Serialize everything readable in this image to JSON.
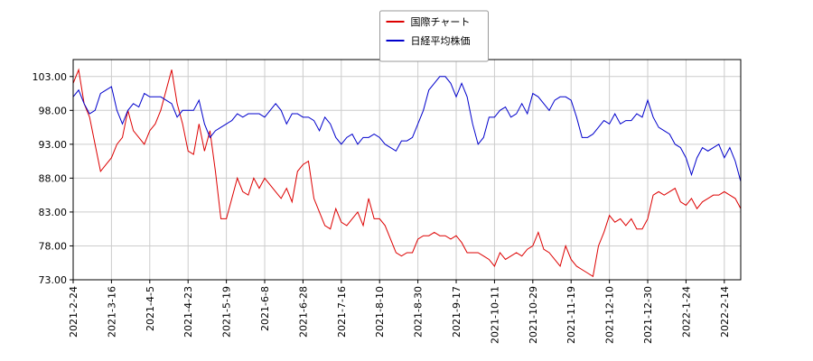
{
  "chart_data": {
    "type": "line",
    "categories": [
      "2021-2-24",
      null,
      null,
      null,
      null,
      null,
      null,
      "2021-3-16",
      null,
      null,
      null,
      null,
      null,
      null,
      "2021-4-5",
      null,
      null,
      null,
      null,
      null,
      null,
      "2021-4-23",
      null,
      null,
      null,
      null,
      null,
      null,
      "2021-5-19",
      null,
      null,
      null,
      null,
      null,
      null,
      "2021-6-8",
      null,
      null,
      null,
      null,
      null,
      null,
      "2021-6-28",
      null,
      null,
      null,
      null,
      null,
      null,
      "2021-7-16",
      null,
      null,
      null,
      null,
      null,
      null,
      "2021-8-10",
      null,
      null,
      null,
      null,
      null,
      null,
      "2021-8-30",
      null,
      null,
      null,
      null,
      null,
      null,
      "2021-9-17",
      null,
      null,
      null,
      null,
      null,
      null,
      "2021-10-11",
      null,
      null,
      null,
      null,
      null,
      null,
      "2021-10-29",
      null,
      null,
      null,
      null,
      null,
      null,
      "2021-11-19",
      null,
      null,
      null,
      null,
      null,
      null,
      "2021-12-10",
      null,
      null,
      null,
      null,
      null,
      null,
      "2021-12-30",
      null,
      null,
      null,
      null,
      null,
      null,
      "2022-1-24",
      null,
      null,
      null,
      null,
      null,
      null,
      "2022-2-14",
      null,
      null,
      null
    ],
    "series": [
      {
        "name": "国際チャート",
        "color": "#dd0000",
        "values": [
          102,
          104,
          99,
          97,
          93,
          89,
          90,
          91,
          93,
          94,
          98,
          95,
          94,
          93,
          95,
          96,
          98,
          101,
          104,
          99,
          96,
          92,
          91.5,
          96,
          92,
          95,
          89,
          82,
          82,
          85,
          88,
          86,
          85.5,
          88,
          86.5,
          88,
          87,
          86,
          85,
          86.5,
          84.5,
          89,
          90,
          90.5,
          85,
          83,
          81,
          80.5,
          83.5,
          81.5,
          81,
          82,
          83,
          81,
          85,
          82,
          82,
          81,
          79,
          77,
          76.5,
          77,
          77,
          79,
          79.5,
          79.5,
          80,
          79.5,
          79.5,
          79,
          79.5,
          78.5,
          77,
          77,
          77,
          76.5,
          76,
          75,
          77,
          76,
          76.5,
          77,
          76.5,
          77.5,
          78,
          80,
          77.5,
          77,
          76,
          75,
          78,
          76,
          75,
          74.5,
          74,
          73.5,
          78,
          80,
          82.5,
          81.5,
          82,
          81,
          82,
          80.5,
          80.5,
          82,
          85.5,
          86,
          85.5,
          86,
          86.5,
          84.5,
          84,
          85,
          83.5,
          84.5,
          85,
          85.5,
          85.5,
          86,
          85.5,
          85,
          83.5
        ]
      },
      {
        "name": "日経平均株価",
        "color": "#0000cc",
        "values": [
          100,
          101,
          99,
          97.5,
          98,
          100.5,
          101,
          101.5,
          98,
          96,
          98,
          99,
          98.5,
          100.5,
          100,
          100,
          100,
          99.5,
          99,
          97,
          98,
          98,
          98,
          99.5,
          96,
          94,
          95,
          95.5,
          96,
          96.5,
          97.5,
          97,
          97.5,
          97.5,
          97.5,
          97,
          98,
          99,
          98,
          96,
          97.5,
          97.5,
          97,
          97,
          96.5,
          95,
          97,
          96,
          94,
          93,
          94,
          94.5,
          93,
          94,
          94,
          94.5,
          94,
          93,
          92.5,
          92,
          93.5,
          93.5,
          94,
          96,
          98,
          101,
          102,
          103,
          103,
          102,
          100,
          102,
          100,
          96,
          93,
          94,
          97,
          97,
          98,
          98.5,
          97,
          97.5,
          99,
          97.5,
          100.5,
          100,
          99,
          98,
          99.5,
          100,
          100,
          99.5,
          97,
          94,
          94,
          94.5,
          95.5,
          96.5,
          96,
          97.5,
          96,
          96.5,
          96.5,
          97.5,
          97,
          99.5,
          97,
          95.5,
          95,
          94.5,
          93,
          92.5,
          91,
          88.5,
          91,
          92.5,
          92,
          92.5,
          93,
          91,
          92.5,
          90.5,
          87.5
        ]
      }
    ],
    "ylim": [
      73,
      105.5
    ],
    "yticks": [
      {
        "value": 73,
        "label": "73.00"
      },
      {
        "value": 78,
        "label": "78.00"
      },
      {
        "value": 83,
        "label": "83.00"
      },
      {
        "value": 88,
        "label": "88.00"
      },
      {
        "value": 93,
        "label": "93.00"
      },
      {
        "value": 98,
        "label": "98.00"
      },
      {
        "value": 103,
        "label": "103.00"
      }
    ],
    "grid": true,
    "legend": "upper center"
  }
}
